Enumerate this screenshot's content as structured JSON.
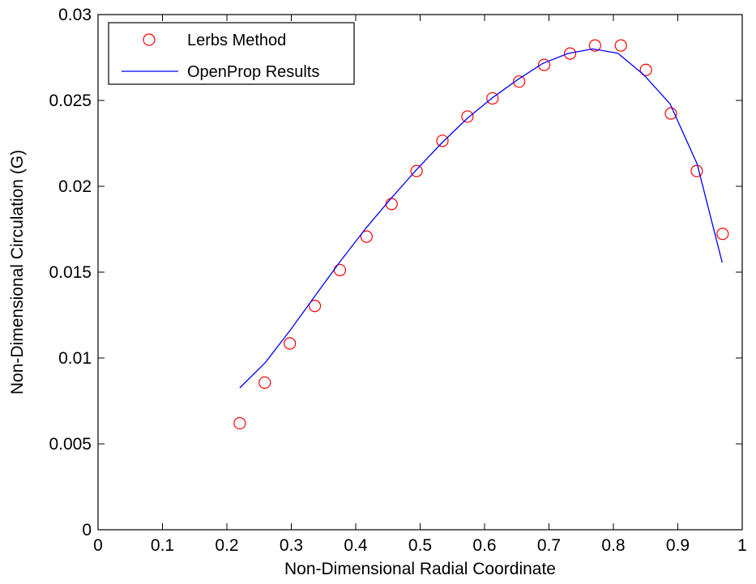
{
  "chart_data": {
    "type": "scatter",
    "title": "",
    "xlabel": "Non-Dimensional Radial Coordinate",
    "ylabel": "Non-Dimensional Circulation (G)",
    "xlim": [
      0,
      1
    ],
    "ylim": [
      0,
      0.03
    ],
    "xticks": [
      "0",
      "0.1",
      "0.2",
      "0.3",
      "0.4",
      "0.5",
      "0.6",
      "0.7",
      "0.8",
      "0.9",
      "1"
    ],
    "yticks": [
      "0",
      "0.005",
      "0.01",
      "0.015",
      "0.02",
      "0.025",
      "0.03"
    ],
    "grid": false,
    "legend_position": "top-left",
    "series": [
      {
        "name": "Lerbs Method",
        "kind": "markers",
        "marker": "circle-open",
        "color": "#ff0000",
        "x": [
          0.22,
          0.2588,
          0.2977,
          0.3365,
          0.3754,
          0.4168,
          0.4557,
          0.4945,
          0.5346,
          0.5735,
          0.6123,
          0.6537,
          0.6925,
          0.7327,
          0.7715,
          0.8116,
          0.8505,
          0.8893,
          0.9294,
          0.9696
        ],
        "y": [
          0.0062,
          0.00857,
          0.01085,
          0.01303,
          0.01512,
          0.01707,
          0.01897,
          0.02089,
          0.02265,
          0.02406,
          0.02512,
          0.0261,
          0.02707,
          0.02773,
          0.0282,
          0.0282,
          0.02678,
          0.02424,
          0.02089,
          0.01723
        ]
      },
      {
        "name": "OpenProp Results",
        "kind": "line",
        "color": "#0000ff",
        "x": [
          0.22,
          0.26,
          0.299,
          0.338,
          0.377,
          0.416,
          0.455,
          0.494,
          0.533,
          0.573,
          0.612,
          0.651,
          0.69,
          0.729,
          0.768,
          0.807,
          0.847,
          0.888,
          0.93,
          0.969
        ],
        "y": [
          0.00826,
          0.00975,
          0.01165,
          0.01368,
          0.01568,
          0.01757,
          0.0193,
          0.02095,
          0.0225,
          0.02395,
          0.02515,
          0.0262,
          0.02715,
          0.02773,
          0.028,
          0.02775,
          0.0265,
          0.0248,
          0.0213,
          0.01555
        ]
      }
    ]
  }
}
